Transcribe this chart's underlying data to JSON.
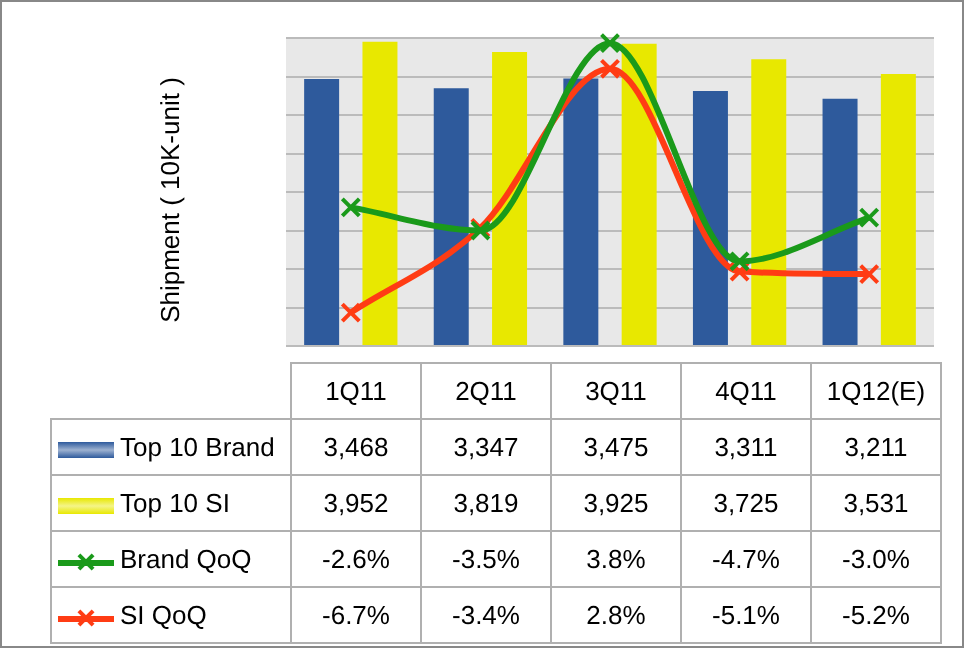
{
  "chart_data": {
    "type": "bar",
    "ylabel": "Shipment ( 10K-unit )",
    "categories": [
      "1Q11",
      "2Q11",
      "3Q11",
      "4Q11",
      "1Q12(E)"
    ],
    "grid": "y",
    "legend": "left",
    "marker": "cross",
    "series": [
      {
        "name": "Top 10 Brand",
        "color": "#2e5a9c",
        "values": [
          3468,
          3347,
          3475,
          3311,
          3211
        ],
        "value_labels": [
          "3,468",
          "3,347",
          "3,475",
          "3,311",
          "3,211"
        ]
      },
      {
        "name": "Top 10 SI",
        "color": "#e8e800",
        "values": [
          3952,
          3819,
          3925,
          3725,
          3531
        ],
        "value_labels": [
          "3,952",
          "3,819",
          "3,925",
          "3,725",
          "3,531"
        ]
      },
      {
        "name": "Brand QoQ",
        "type": "line",
        "axis": "y2",
        "color": "#1a9a1a",
        "values": [
          -2.6,
          -3.5,
          3.8,
          -4.7,
          -3.0
        ],
        "value_labels": [
          "-2.6%",
          "-3.5%",
          "3.8%",
          "-4.7%",
          "-3.0%"
        ]
      },
      {
        "name": "SI QoQ",
        "type": "line",
        "axis": "y2",
        "color": "#ff3c14",
        "values": [
          -6.7,
          -3.4,
          2.8,
          -5.1,
          -5.2
        ],
        "value_labels": [
          "-6.7%",
          "-3.4%",
          "2.8%",
          "-5.1%",
          "-5.2%"
        ]
      }
    ]
  }
}
